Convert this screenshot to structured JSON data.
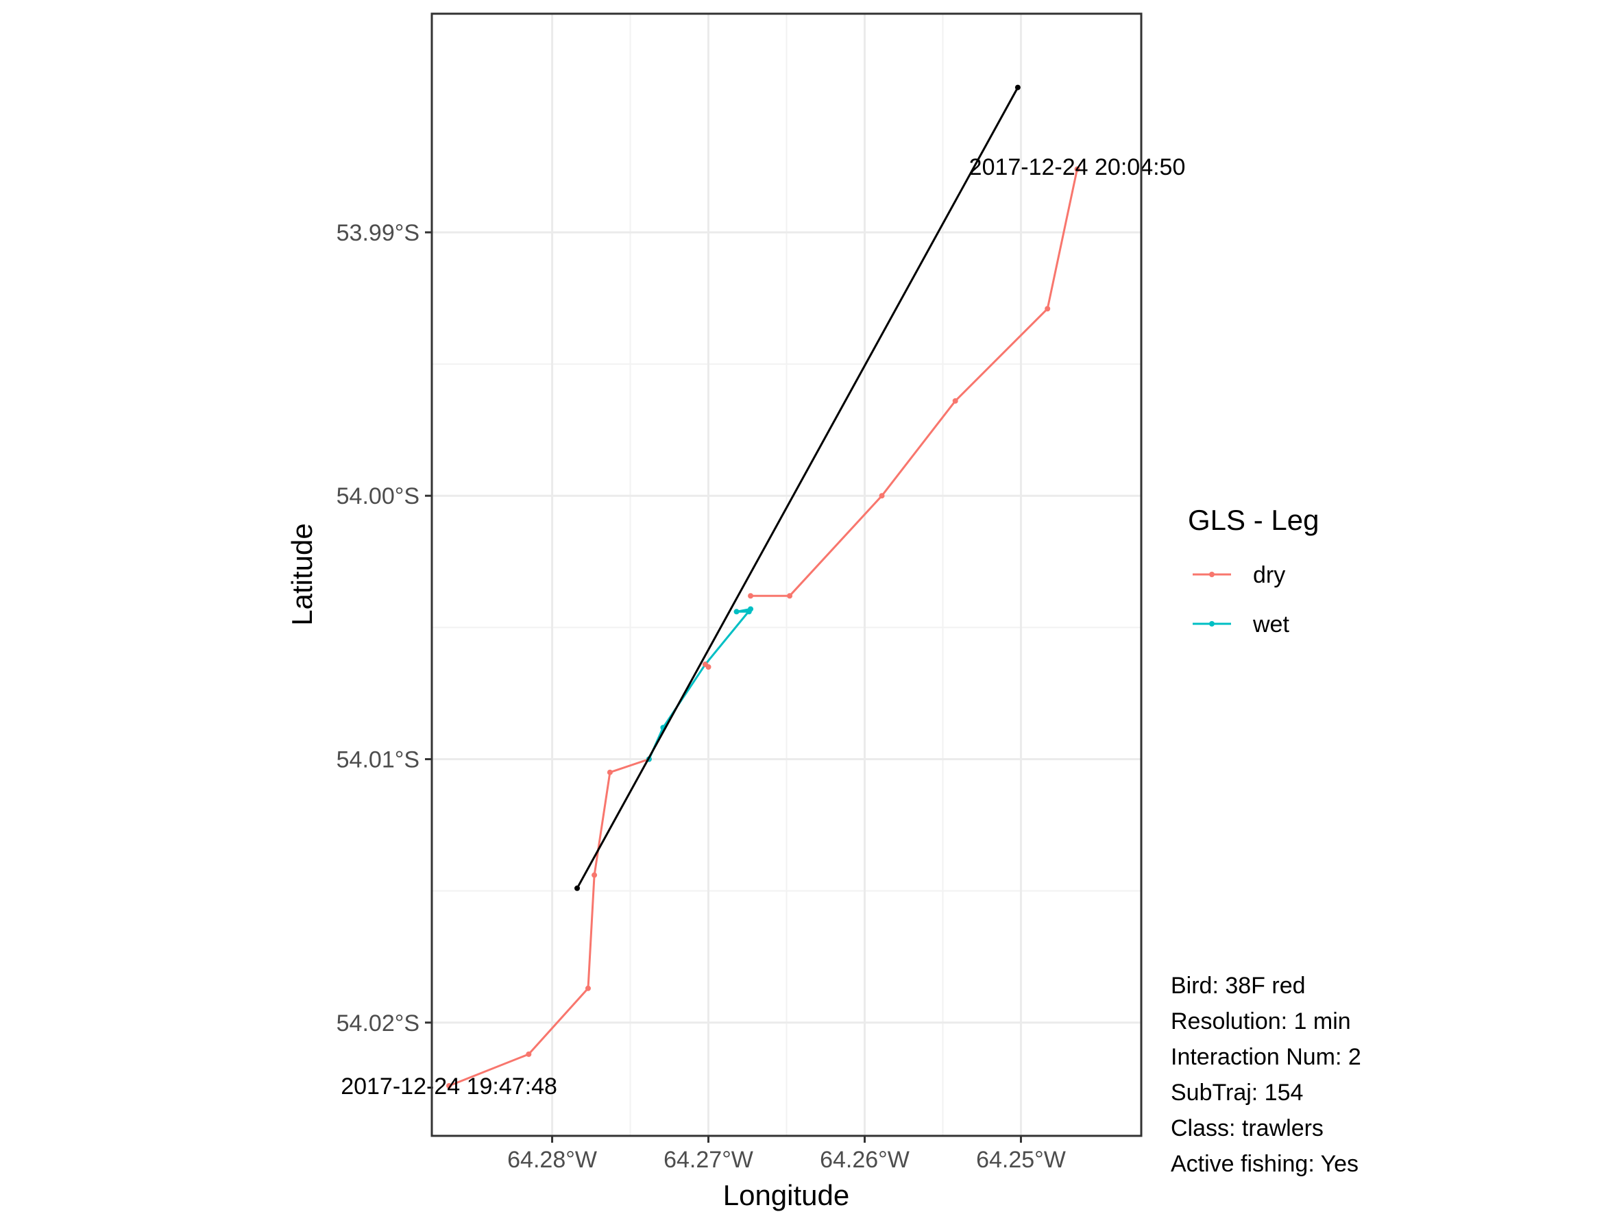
{
  "chart_data": {
    "type": "line",
    "xlabel": "Longitude",
    "ylabel": "Latitude",
    "xlim": [
      -64.2877,
      -64.2423
    ],
    "ylim": [
      -54.0243,
      -53.9817
    ],
    "x_ticks": [
      {
        "value": -64.28,
        "label": "64.28°W"
      },
      {
        "value": -64.27,
        "label": "64.27°W"
      },
      {
        "value": -64.26,
        "label": "64.26°W"
      },
      {
        "value": -64.25,
        "label": "64.25°W"
      }
    ],
    "y_ticks": [
      {
        "value": -53.99,
        "label": "53.99°S"
      },
      {
        "value": -54.0,
        "label": "54.00°S"
      },
      {
        "value": -54.01,
        "label": "54.01°S"
      },
      {
        "value": -54.02,
        "label": "54.02°S"
      }
    ],
    "grid": true,
    "legend": {
      "title": "GLS - Leg",
      "position": "right",
      "entries": [
        {
          "name": "dry",
          "color": "#F8766D"
        },
        {
          "name": "wet",
          "color": "#00BFC4"
        }
      ]
    },
    "series": [
      {
        "name": "dry",
        "color": "#F8766D",
        "x": [
          -64.2866,
          -64.2815,
          -64.2777,
          -64.2773,
          -64.2763,
          -64.2738
        ],
        "y": [
          -54.0224,
          -54.0212,
          -54.0187,
          -54.0144,
          -54.0105,
          -54.01
        ]
      },
      {
        "name": "wet",
        "color": "#00BFC4",
        "x": [
          -64.2738,
          -64.2729,
          -64.2702,
          -64.2673,
          -64.2682,
          -64.2674
        ],
        "y": [
          -54.01,
          -54.0088,
          -54.0064,
          -54.0043,
          -54.0044,
          -54.0044
        ]
      },
      {
        "name": "dry",
        "color": "#F8766D",
        "x": [
          -64.2673,
          -64.2648,
          -64.2589,
          -64.2542,
          -64.2483,
          -64.2464
        ],
        "y": [
          -54.0038,
          -54.0038,
          -54.0,
          -53.9964,
          -53.9929,
          -53.9876
        ]
      },
      {
        "name": "",
        "color": "#000000",
        "x": [
          -64.2784,
          -64.2502
        ],
        "y": [
          -54.0149,
          -53.9845
        ]
      },
      {
        "name": "",
        "color": "#F8766D",
        "x": [
          -64.2702,
          -64.27
        ],
        "y": [
          -54.0064,
          -54.0065
        ]
      }
    ],
    "annotations": [
      {
        "text": "2017-12-24 20:04:50",
        "x": -64.2464,
        "y": -53.9875
      },
      {
        "text": "2017-12-24 19:47:48",
        "x": -64.2866,
        "y": -54.0224
      }
    ]
  },
  "info": [
    "Bird: 38F red",
    "Resolution: 1 min",
    "Interaction Num: 2",
    "SubTraj: 154",
    "Class: trawlers",
    "Active fishing: Yes"
  ]
}
